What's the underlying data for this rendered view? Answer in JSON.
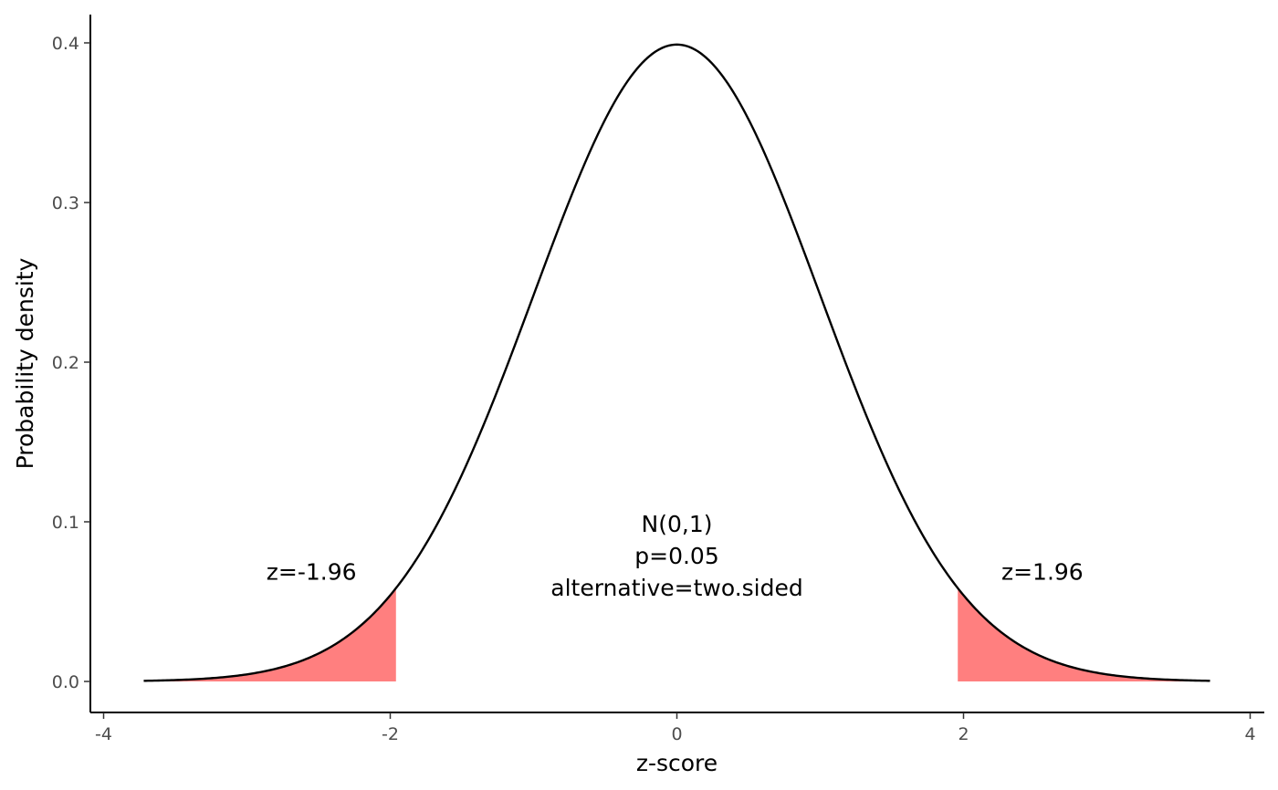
{
  "chart_data": {
    "type": "line",
    "title": "",
    "xlabel": "z-score",
    "ylabel": "Probability density",
    "xlim": [
      -4,
      4
    ],
    "ylim": [
      0,
      0.4
    ],
    "x_ticks": [
      -4,
      -2,
      0,
      2,
      4
    ],
    "x_tick_labels": [
      "-4",
      "-2",
      "0",
      "2",
      "4"
    ],
    "y_ticks": [
      0.0,
      0.1,
      0.2,
      0.3,
      0.4
    ],
    "y_tick_labels": [
      "0.0",
      "0.1",
      "0.2",
      "0.3",
      "0.4"
    ],
    "grid": false,
    "curve": {
      "distribution": "standard normal density",
      "x_range": [
        -3.72,
        3.72
      ],
      "color": "#000000"
    },
    "shaded_regions": [
      {
        "from": -3.72,
        "to": -1.96,
        "color": "#FF7F7F"
      },
      {
        "from": 1.96,
        "to": 3.72,
        "color": "#FF7F7F"
      }
    ],
    "annotations": {
      "left": {
        "text": "z=-1.96",
        "x": -2.55,
        "y": 0.069
      },
      "right": {
        "text": "z=1.96",
        "x": 2.55,
        "y": 0.069
      },
      "center": {
        "lines": [
          "N(0,1)",
          "p=0.05",
          "alternative=two.sided"
        ],
        "x": 0,
        "y": [
          0.099,
          0.079,
          0.059
        ]
      }
    }
  }
}
